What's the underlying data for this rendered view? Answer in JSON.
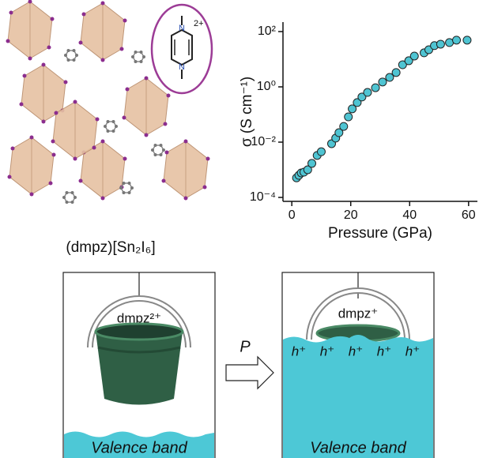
{
  "chart_data": {
    "type": "scatter",
    "xlabel": "Pressure (GPa)",
    "ylabel": "σ (S cm⁻¹)",
    "x": [
      1.6,
      2.4,
      3.2,
      4.1,
      5.4,
      6.8,
      8.6,
      10,
      13.5,
      14.9,
      16,
      17.6,
      19.2,
      20.5,
      22.2,
      23.8,
      25.7,
      28.4,
      30.8,
      33.2,
      35.4,
      37.6,
      39.7,
      41.6,
      44.9,
      46.5,
      48.4,
      50.5,
      53.5,
      55.9,
      59.5
    ],
    "values": [
      0.00051,
      0.00063,
      0.00077,
      0.00082,
      0.001,
      0.0017,
      0.0033,
      0.0045,
      0.0088,
      0.014,
      0.022,
      0.037,
      0.082,
      0.16,
      0.27,
      0.43,
      0.63,
      0.93,
      1.5,
      2.2,
      3.3,
      6.3,
      8.8,
      13,
      17,
      22,
      31,
      35,
      40,
      49,
      49
    ],
    "color": "#4fc4d2",
    "xlim": [
      -3,
      63
    ],
    "xticks": [
      0,
      20,
      40,
      60
    ],
    "ylim": [
      7.2e-05,
      220
    ],
    "ylog": true,
    "yticks": [
      {
        "value": 100,
        "label": "10²"
      },
      {
        "value": 1,
        "label": "10⁰"
      },
      {
        "value": 0.01,
        "label": "10⁻²"
      },
      {
        "value": 0.0001,
        "label": "10⁻⁴"
      }
    ]
  },
  "structure": {
    "caption": "(dmpz)[Sn₂I₆]",
    "inset_atoms": [
      "N",
      "N"
    ],
    "inset_charge": "2+"
  },
  "left_panel": {
    "cation": "dmpz²⁺",
    "band": "Valence band"
  },
  "arrow_label": "P",
  "right_panel": {
    "cation": "dmpz⁺",
    "holes": [
      "h⁺",
      "h⁺",
      "h⁺",
      "h⁺",
      "h⁺"
    ],
    "band": "Valence band"
  }
}
